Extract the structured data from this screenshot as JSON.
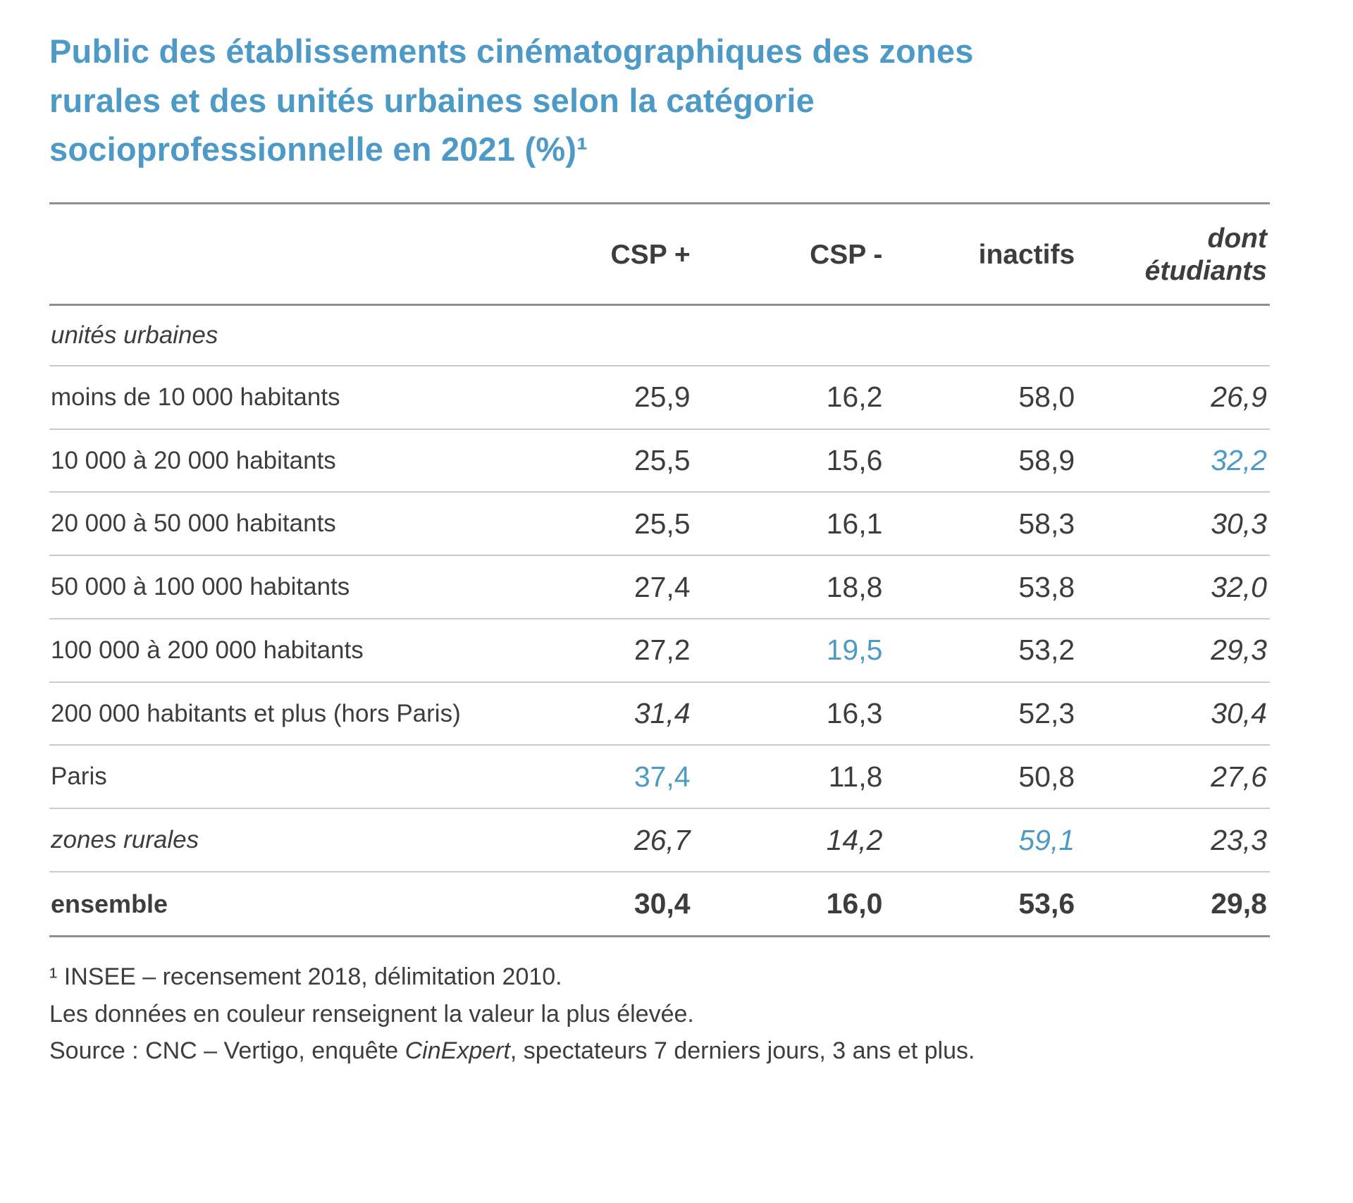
{
  "title": "Public des établissements cinématographiques des zones rurales et des unités urbaines selon la catégorie socioprofessionnelle en 2021 (%)¹",
  "accent_color": "#4d9ac6",
  "text_color": "#3d3d3c",
  "table": {
    "columns": [
      "CSP +",
      "CSP -",
      "inactifs",
      "dont étudiants"
    ],
    "rows": [
      {
        "label": "unités urbaines",
        "type": "section",
        "values": []
      },
      {
        "label": "moins de 10 000 habitants",
        "values": [
          {
            "v": "25,9"
          },
          {
            "v": "16,2"
          },
          {
            "v": "58,0"
          },
          {
            "v": "26,9",
            "style": "italic"
          }
        ]
      },
      {
        "label": "10 000 à 20 000 habitants",
        "values": [
          {
            "v": "25,5"
          },
          {
            "v": "15,6"
          },
          {
            "v": "58,9"
          },
          {
            "v": "32,2",
            "style": "blue-italic"
          }
        ]
      },
      {
        "label": "20 000 à 50 000 habitants",
        "values": [
          {
            "v": "25,5"
          },
          {
            "v": "16,1"
          },
          {
            "v": "58,3"
          },
          {
            "v": "30,3",
            "style": "italic"
          }
        ]
      },
      {
        "label": "50 000 à 100 000 habitants",
        "values": [
          {
            "v": "27,4"
          },
          {
            "v": "18,8"
          },
          {
            "v": "53,8"
          },
          {
            "v": "32,0",
            "style": "italic"
          }
        ]
      },
      {
        "label": "100 000 à 200 000 habitants",
        "values": [
          {
            "v": "27,2"
          },
          {
            "v": "19,5",
            "style": "blue"
          },
          {
            "v": "53,2"
          },
          {
            "v": "29,3",
            "style": "italic"
          }
        ]
      },
      {
        "label": "200 000 habitants et plus (hors Paris)",
        "values": [
          {
            "v": "31,4",
            "style": "italic"
          },
          {
            "v": "16,3"
          },
          {
            "v": "52,3"
          },
          {
            "v": "30,4",
            "style": "italic"
          }
        ]
      },
      {
        "label": "Paris",
        "values": [
          {
            "v": "37,4",
            "style": "blue"
          },
          {
            "v": "11,8"
          },
          {
            "v": "50,8"
          },
          {
            "v": "27,6",
            "style": "italic"
          }
        ]
      },
      {
        "label": "zones rurales",
        "label_style": "italic",
        "values": [
          {
            "v": "26,7",
            "style": "italic"
          },
          {
            "v": "14,2",
            "style": "italic"
          },
          {
            "v": "59,1",
            "style": "blue-italic"
          },
          {
            "v": "23,3",
            "style": "italic"
          }
        ]
      },
      {
        "label": "ensemble",
        "type": "total",
        "values": [
          {
            "v": "30,4",
            "style": "bold"
          },
          {
            "v": "16,0",
            "style": "bold"
          },
          {
            "v": "53,6",
            "style": "bold"
          },
          {
            "v": "29,8",
            "style": "bold"
          }
        ]
      }
    ]
  },
  "footnotes": [
    "¹ INSEE – recensement 2018, délimitation 2010.",
    "Les données en couleur renseignent la valeur la plus élevée."
  ],
  "source": {
    "prefix": "Source : CNC – Vertigo, enquête ",
    "italic": "CinExpert",
    "suffix": ", spectateurs 7 derniers jours, 3 ans et plus."
  },
  "chart_data": {
    "type": "table",
    "title": "Public des établissements cinématographiques des zones rurales et des unités urbaines selon la catégorie socioprofessionnelle en 2021 (%)",
    "columns": [
      "CSP +",
      "CSP -",
      "inactifs",
      "dont étudiants"
    ],
    "section": "unités urbaines",
    "rows": [
      "moins de 10 000 habitants",
      "10 000 à 20 000 habitants",
      "20 000 à 50 000 habitants",
      "50 000 à 100 000 habitants",
      "100 000 à 200 000 habitants",
      "200 000 habitants et plus (hors Paris)",
      "Paris",
      "zones rurales",
      "ensemble"
    ],
    "values": [
      [
        25.9,
        16.2,
        58.0,
        26.9
      ],
      [
        25.5,
        15.6,
        58.9,
        32.2
      ],
      [
        25.5,
        16.1,
        58.3,
        30.3
      ],
      [
        27.4,
        18.8,
        53.8,
        32.0
      ],
      [
        27.2,
        19.5,
        53.2,
        29.3
      ],
      [
        31.4,
        16.3,
        52.3,
        30.4
      ],
      [
        37.4,
        11.8,
        50.8,
        27.6
      ],
      [
        26.7,
        14.2,
        59.1,
        23.3
      ],
      [
        30.4,
        16.0,
        53.6,
        29.8
      ]
    ],
    "highlighted_values_note": "Colored (blue) values mark the highest value per column: CSP+ 37,4 (Paris); CSP- 19,5 (100 000 à 200 000 habitants); inactifs 59,1 (zones rurales); dont étudiants 32,2 (10 000 à 20 000 habitants)"
  }
}
